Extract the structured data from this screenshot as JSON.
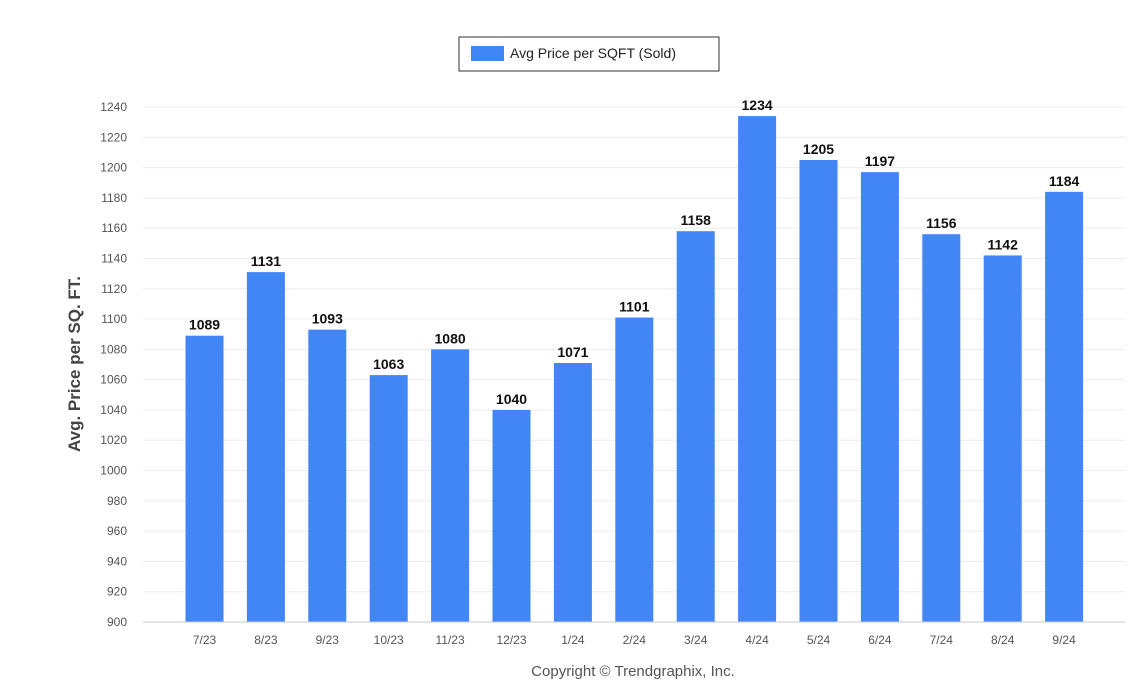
{
  "chart_data": {
    "type": "bar",
    "title": "",
    "xlabel": "",
    "ylabel": "Avg. Price per SQ. FT.",
    "ylim": [
      900,
      1240
    ],
    "ytick_step": 20,
    "grid": true,
    "legend_position": "top-center",
    "categories": [
      "7/23",
      "8/23",
      "9/23",
      "10/23",
      "11/23",
      "12/23",
      "1/24",
      "2/24",
      "3/24",
      "4/24",
      "5/24",
      "6/24",
      "7/24",
      "8/24",
      "9/24"
    ],
    "series": [
      {
        "name": "Avg Price per SQFT (Sold)",
        "color": "#4285F4",
        "values": [
          1089,
          1131,
          1093,
          1063,
          1080,
          1040,
          1071,
          1101,
          1158,
          1234,
          1205,
          1197,
          1156,
          1142,
          1184
        ]
      }
    ]
  },
  "footer": {
    "copyright": "Copyright © Trendgraphix, Inc."
  }
}
